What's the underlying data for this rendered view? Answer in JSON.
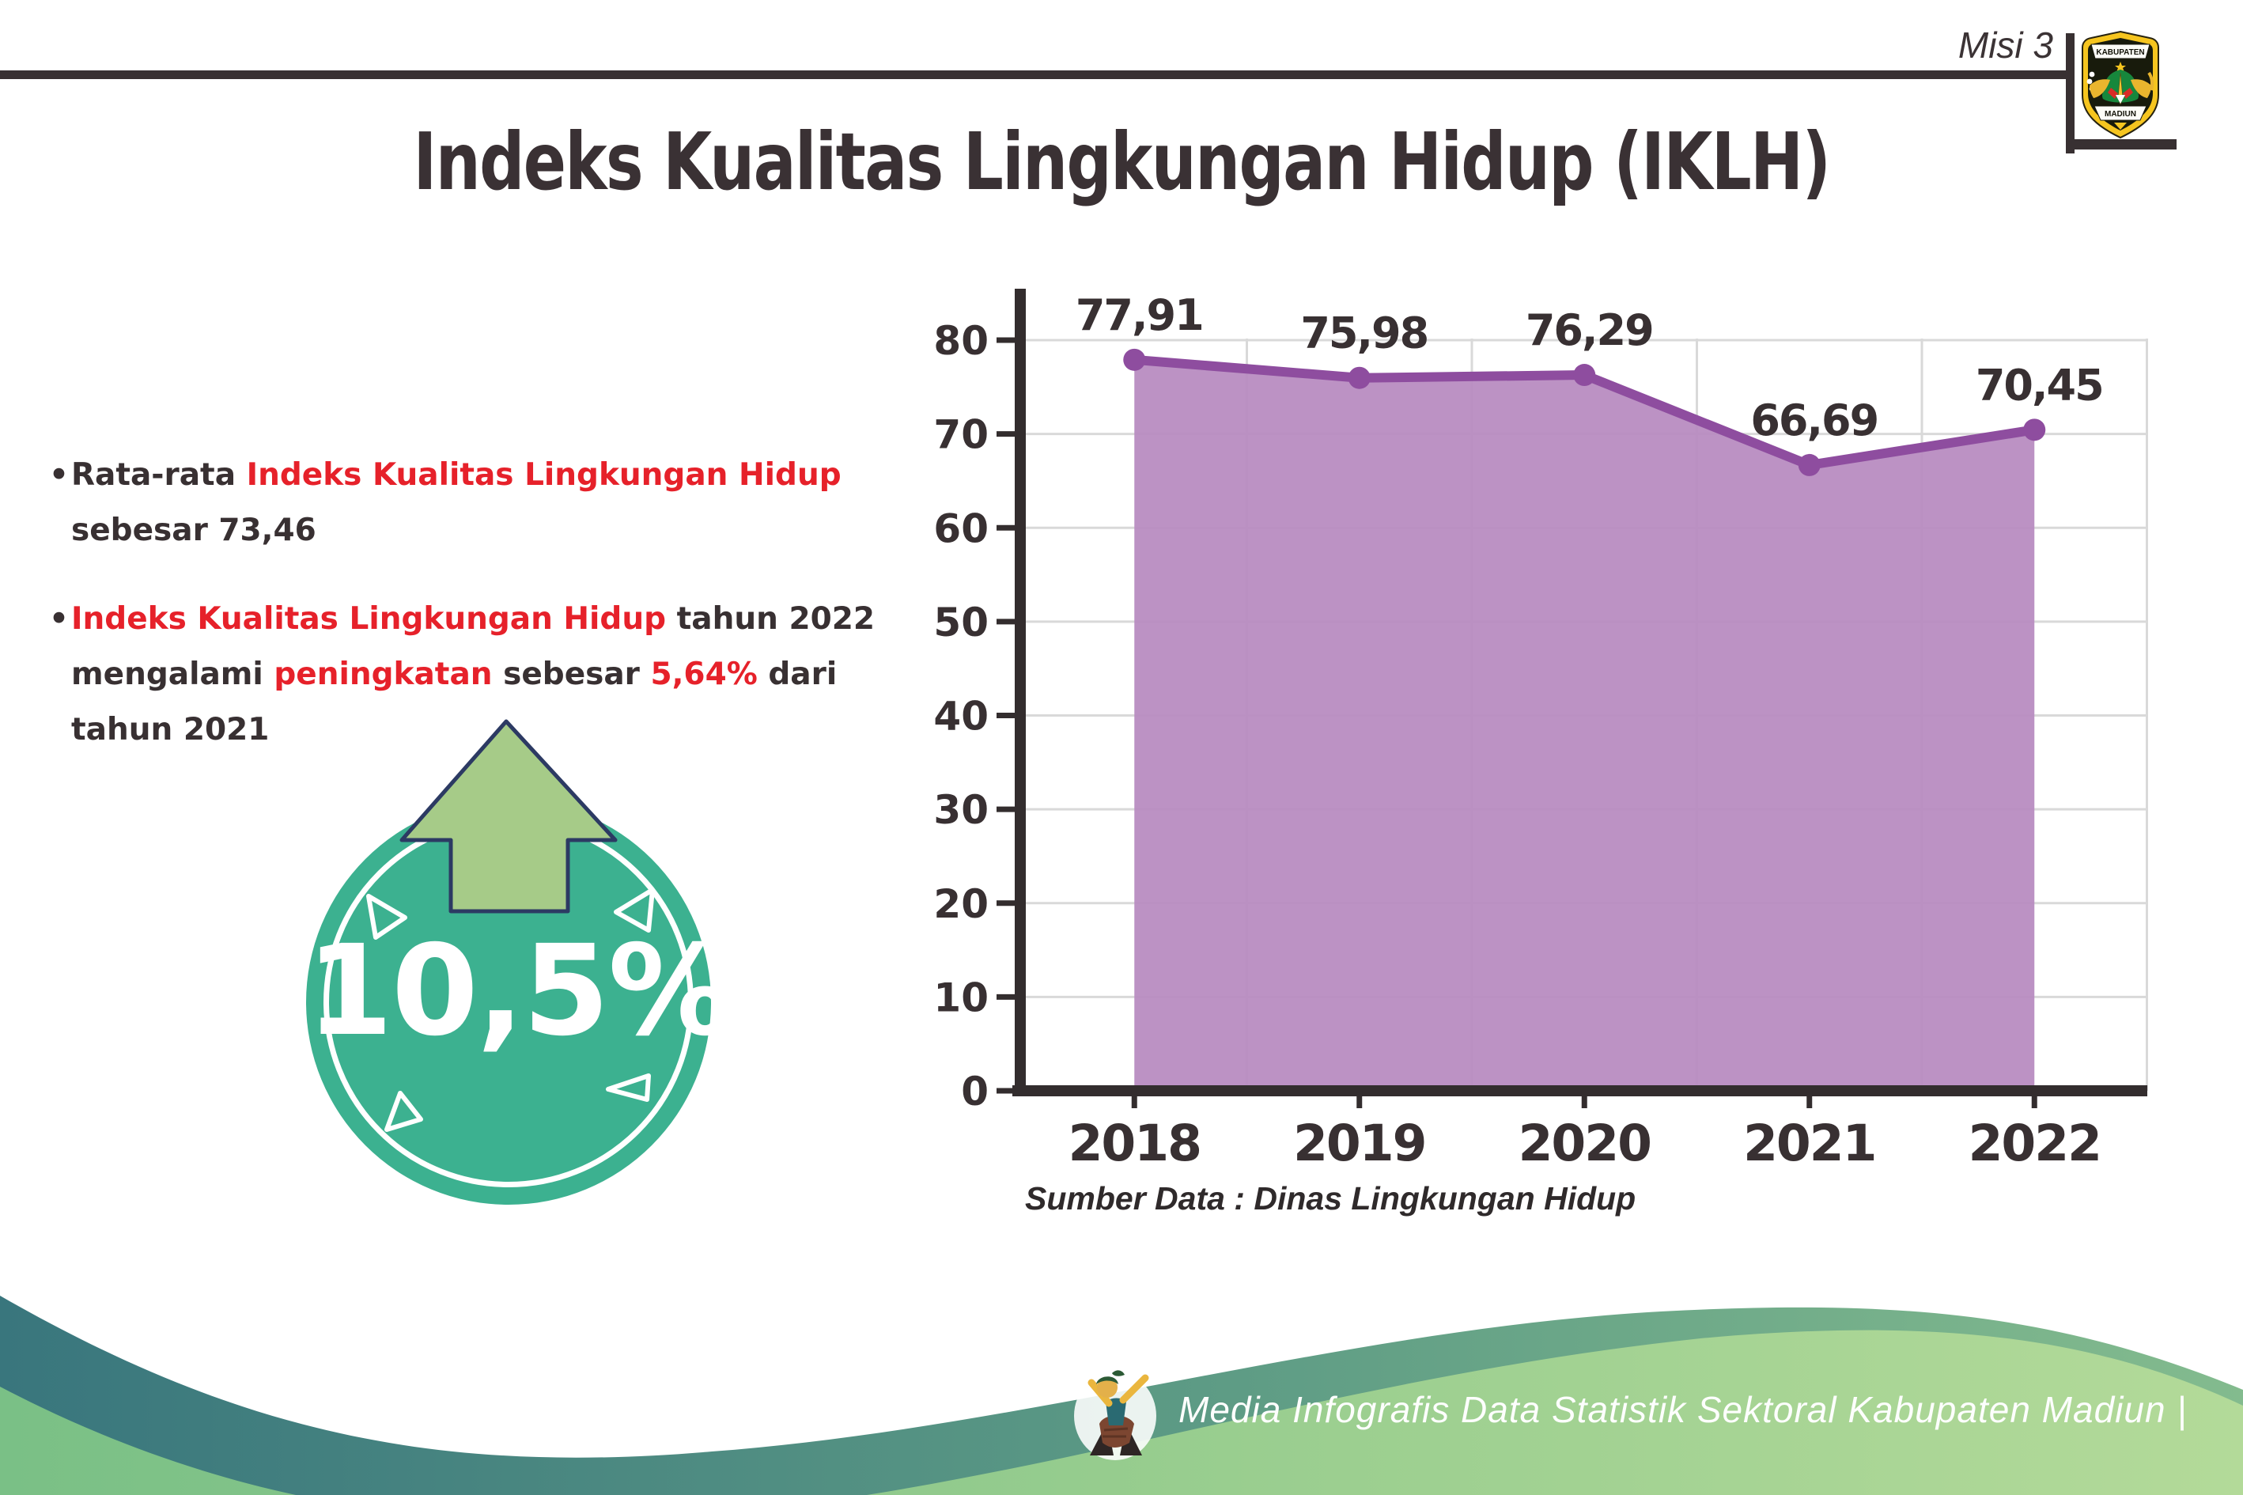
{
  "page": {
    "mission_label": "Misi 3",
    "title": "Indeks Kualitas Lingkungan Hidup (IKLH)"
  },
  "logo": {
    "top_text": "KABUPATEN",
    "bottom_text": "MADIUN"
  },
  "bullets": [
    {
      "marker": "•",
      "segments": [
        {
          "text": "Rata-rata ",
          "color": "dark"
        },
        {
          "text": "Indeks Kualitas Lingkungan Hidup",
          "color": "red"
        },
        {
          "text": "\nsebesar 73,46",
          "color": "dark"
        }
      ]
    },
    {
      "marker": "•",
      "segments": [
        {
          "text": "Indeks Kualitas Lingkungan Hidup",
          "color": "red"
        },
        {
          "text": " tahun 2022\nmengalami ",
          "color": "dark"
        },
        {
          "text": "peningkatan",
          "color": "red"
        },
        {
          "text": " sebesar ",
          "color": "dark"
        },
        {
          "text": "5,64%",
          "color": "red"
        },
        {
          "text": " dari\ntahun 2021",
          "color": "dark"
        }
      ]
    }
  ],
  "badge": {
    "value_label": "10,5%",
    "circle_color": "#3cb190",
    "arrow_color": "#a6cb88"
  },
  "chart_data": {
    "type": "area",
    "categories": [
      "2018",
      "2019",
      "2020",
      "2021",
      "2022"
    ],
    "values": [
      77.91,
      75.98,
      76.29,
      66.69,
      70.45
    ],
    "value_labels": [
      "77,91",
      "75,98",
      "76,29",
      "66,69",
      "70,45"
    ],
    "title": "",
    "xlabel": "",
    "ylabel": "",
    "ylim": [
      0,
      80
    ],
    "ytick_step": 10,
    "grid": true,
    "legend": "none",
    "source_note": "Sumber Data : Dinas Lingkungan Hidup",
    "area_color": "#b78abf",
    "line_color": "#8e4d9f",
    "marker_color": "#8e4d9f",
    "axis_color": "#332d2e",
    "grid_color": "#d9d9d9",
    "label_color": "#383032"
  },
  "footer": {
    "credit": "Media Infografis Data Statistik Sektoral Kabupaten Madiun |"
  },
  "colors": {
    "accent_red": "#e6212a",
    "text_dark": "#383032",
    "badge_teal": "#3cb190",
    "footer_teal_left": "#39767d",
    "footer_green_right": "#b3da99"
  }
}
